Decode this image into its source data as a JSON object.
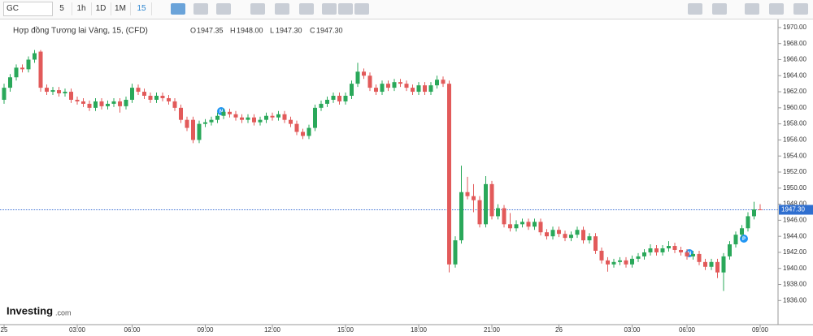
{
  "toolbar": {
    "symbol": "GC",
    "intervals": [
      "5",
      "1h",
      "1D",
      "1M",
      "15"
    ]
  },
  "legend": {
    "instrument": "Hợp đồng Tương lai Vàng, 15, (CFD)",
    "ohlc": [
      {
        "label": "O",
        "value": "1947.35"
      },
      {
        "label": "H",
        "value": "1948.00"
      },
      {
        "label": "L",
        "value": "1947.30"
      },
      {
        "label": "C",
        "value": "1947.30"
      }
    ]
  },
  "events": [
    "N",
    "N",
    "P"
  ],
  "branding": {
    "name": "Investing",
    "suffix": ".com"
  },
  "chart_data": {
    "type": "candlestick",
    "up_color": "#2aa85a",
    "down_color": "#e25a5a",
    "ylim": [
      1933,
      1971
    ],
    "yticks": [
      {
        "value": 1936,
        "label": "1936.00"
      },
      {
        "value": 1938,
        "label": "1938.00"
      },
      {
        "value": 1940,
        "label": "1940.00"
      },
      {
        "value": 1942,
        "label": "1942.00"
      },
      {
        "value": 1944,
        "label": "1944.00"
      },
      {
        "value": 1946,
        "label": "1946.00"
      },
      {
        "value": 1948,
        "label": "1948.00"
      },
      {
        "value": 1950,
        "label": "1950.00"
      },
      {
        "value": 1952,
        "label": "1952.00"
      },
      {
        "value": 1954,
        "label": "1954.00"
      },
      {
        "value": 1956,
        "label": "1956.00"
      },
      {
        "value": 1958,
        "label": "1958.00"
      },
      {
        "value": 1960,
        "label": "1960.00"
      },
      {
        "value": 1962,
        "label": "1962.00"
      },
      {
        "value": 1964,
        "label": "1964.00"
      },
      {
        "value": 1966,
        "label": "1966.00"
      },
      {
        "value": 1968,
        "label": "1968.00"
      },
      {
        "value": 1970,
        "label": "1970.00"
      }
    ],
    "last_price": {
      "value": 1947.3,
      "label": "1947.30"
    },
    "categories": [
      "25",
      null,
      null,
      null,
      null,
      null,
      null,
      null,
      null,
      null,
      null,
      null,
      "03:00",
      null,
      null,
      null,
      null,
      null,
      null,
      null,
      null,
      "06:00",
      null,
      null,
      null,
      null,
      null,
      null,
      null,
      null,
      null,
      null,
      null,
      "09:00",
      null,
      null,
      null,
      null,
      null,
      null,
      null,
      null,
      null,
      null,
      "12:00",
      null,
      null,
      null,
      null,
      null,
      null,
      null,
      null,
      null,
      null,
      null,
      "15:00",
      null,
      null,
      null,
      null,
      null,
      null,
      null,
      null,
      null,
      null,
      null,
      "18:00",
      null,
      null,
      null,
      null,
      null,
      null,
      null,
      null,
      null,
      null,
      null,
      "21:00",
      null,
      null,
      null,
      null,
      null,
      null,
      null,
      null,
      null,
      null,
      "26",
      null,
      null,
      null,
      null,
      null,
      null,
      null,
      null,
      null,
      null,
      null,
      "03:00",
      null,
      null,
      null,
      null,
      null,
      null,
      null,
      null,
      "06:00",
      null,
      null,
      null,
      null,
      null,
      null,
      null,
      null,
      null,
      null,
      null,
      "09:00"
    ],
    "ohlc": [
      [
        1961.0,
        1963.0,
        1960.5,
        1962.5
      ],
      [
        1962.5,
        1964.2,
        1962.0,
        1963.8
      ],
      [
        1963.8,
        1965.4,
        1963.4,
        1965.0
      ],
      [
        1965.0,
        1965.4,
        1964.4,
        1964.8
      ],
      [
        1964.8,
        1966.4,
        1964.4,
        1966.0
      ],
      [
        1966.0,
        1967.2,
        1965.6,
        1966.8
      ],
      [
        1967.0,
        1967.2,
        1962.0,
        1962.5
      ],
      [
        1962.5,
        1962.9,
        1961.6,
        1962.0
      ],
      [
        1962.0,
        1962.6,
        1961.6,
        1962.2
      ],
      [
        1962.2,
        1962.6,
        1961.4,
        1961.8
      ],
      [
        1961.8,
        1962.4,
        1961.4,
        1962.0
      ],
      [
        1962.0,
        1962.4,
        1960.6,
        1961.0
      ],
      [
        1961.0,
        1961.4,
        1960.4,
        1960.8
      ],
      [
        1960.8,
        1961.2,
        1960.1,
        1960.5
      ],
      [
        1960.5,
        1960.9,
        1959.6,
        1960.0
      ],
      [
        1960.0,
        1961.2,
        1959.6,
        1960.8
      ],
      [
        1960.8,
        1961.2,
        1959.8,
        1960.2
      ],
      [
        1960.2,
        1960.9,
        1959.8,
        1960.5
      ],
      [
        1960.5,
        1961.2,
        1960.1,
        1960.8
      ],
      [
        1960.8,
        1961.2,
        1959.4,
        1960.2
      ],
      [
        1960.2,
        1961.4,
        1959.8,
        1961.0
      ],
      [
        1961.0,
        1963.0,
        1960.6,
        1962.5
      ],
      [
        1962.5,
        1962.9,
        1961.6,
        1962.0
      ],
      [
        1962.0,
        1962.4,
        1961.1,
        1961.5
      ],
      [
        1961.5,
        1961.9,
        1960.6,
        1961.0
      ],
      [
        1961.0,
        1961.9,
        1960.6,
        1961.5
      ],
      [
        1961.5,
        1961.9,
        1960.8,
        1961.2
      ],
      [
        1961.2,
        1961.6,
        1960.4,
        1960.8
      ],
      [
        1960.8,
        1961.2,
        1959.6,
        1960.0
      ],
      [
        1960.0,
        1960.4,
        1958.1,
        1958.5
      ],
      [
        1958.5,
        1958.9,
        1957.1,
        1957.5
      ],
      [
        1958.5,
        1958.9,
        1955.6,
        1956.0
      ],
      [
        1956.0,
        1958.4,
        1955.6,
        1958.0
      ],
      [
        1958.0,
        1958.6,
        1957.6,
        1958.2
      ],
      [
        1958.2,
        1958.9,
        1957.8,
        1958.5
      ],
      [
        1958.5,
        1959.4,
        1958.1,
        1959.0
      ],
      [
        1959.0,
        1959.9,
        1958.6,
        1959.5
      ],
      [
        1959.5,
        1959.9,
        1958.8,
        1959.2
      ],
      [
        1959.2,
        1959.6,
        1958.4,
        1958.8
      ],
      [
        1958.8,
        1959.2,
        1958.1,
        1958.5
      ],
      [
        1958.5,
        1959.2,
        1958.1,
        1958.8
      ],
      [
        1958.8,
        1959.2,
        1957.8,
        1958.2
      ],
      [
        1958.2,
        1958.9,
        1957.8,
        1958.5
      ],
      [
        1958.5,
        1959.4,
        1958.1,
        1959.0
      ],
      [
        1959.0,
        1959.4,
        1958.4,
        1958.8
      ],
      [
        1958.8,
        1959.6,
        1958.4,
        1959.2
      ],
      [
        1959.2,
        1959.6,
        1958.1,
        1958.5
      ],
      [
        1958.5,
        1958.9,
        1957.6,
        1958.0
      ],
      [
        1958.0,
        1958.4,
        1956.6,
        1957.0
      ],
      [
        1957.0,
        1957.4,
        1956.1,
        1956.5
      ],
      [
        1956.5,
        1957.9,
        1956.1,
        1957.5
      ],
      [
        1957.5,
        1960.4,
        1957.1,
        1960.0
      ],
      [
        1960.0,
        1960.9,
        1959.6,
        1960.5
      ],
      [
        1960.5,
        1961.4,
        1960.1,
        1961.0
      ],
      [
        1961.0,
        1961.9,
        1960.6,
        1961.5
      ],
      [
        1961.5,
        1961.9,
        1960.4,
        1960.8
      ],
      [
        1960.8,
        1961.9,
        1960.4,
        1961.5
      ],
      [
        1961.5,
        1963.4,
        1961.1,
        1963.0
      ],
      [
        1963.0,
        1965.6,
        1962.6,
        1964.5
      ],
      [
        1964.5,
        1964.9,
        1963.6,
        1964.0
      ],
      [
        1964.0,
        1964.4,
        1962.1,
        1962.5
      ],
      [
        1962.5,
        1962.9,
        1961.6,
        1962.0
      ],
      [
        1962.0,
        1963.4,
        1961.6,
        1963.0
      ],
      [
        1963.0,
        1963.4,
        1962.1,
        1962.5
      ],
      [
        1962.5,
        1963.6,
        1962.1,
        1963.2
      ],
      [
        1963.2,
        1963.6,
        1962.6,
        1963.0
      ],
      [
        1963.0,
        1963.4,
        1962.1,
        1962.5
      ],
      [
        1962.5,
        1962.9,
        1961.6,
        1962.0
      ],
      [
        1962.0,
        1963.2,
        1961.6,
        1962.8
      ],
      [
        1962.8,
        1963.2,
        1961.6,
        1962.0
      ],
      [
        1962.0,
        1963.2,
        1961.6,
        1962.8
      ],
      [
        1962.8,
        1964.0,
        1962.4,
        1963.5
      ],
      [
        1963.5,
        1963.9,
        1962.6,
        1963.0
      ],
      [
        1963.0,
        1963.4,
        1939.5,
        1940.5
      ],
      [
        1940.5,
        1944.0,
        1940.1,
        1943.5
      ],
      [
        1943.5,
        1952.8,
        1943.1,
        1949.5
      ],
      [
        1949.5,
        1951.4,
        1948.6,
        1949.0
      ],
      [
        1949.0,
        1950.5,
        1947.0,
        1948.5
      ],
      [
        1948.5,
        1949.0,
        1945.1,
        1945.5
      ],
      [
        1945.5,
        1951.5,
        1945.1,
        1950.5
      ],
      [
        1950.5,
        1950.9,
        1946.1,
        1946.5
      ],
      [
        1946.5,
        1948.0,
        1946.1,
        1947.5
      ],
      [
        1947.5,
        1947.9,
        1945.1,
        1945.5
      ],
      [
        1945.5,
        1946.9,
        1944.6,
        1945.0
      ],
      [
        1945.0,
        1946.0,
        1944.6,
        1945.5
      ],
      [
        1945.5,
        1946.2,
        1945.1,
        1945.8
      ],
      [
        1945.8,
        1946.2,
        1944.8,
        1945.2
      ],
      [
        1945.2,
        1946.2,
        1944.8,
        1945.8
      ],
      [
        1945.8,
        1946.2,
        1944.1,
        1944.5
      ],
      [
        1944.5,
        1944.9,
        1943.6,
        1944.0
      ],
      [
        1944.0,
        1945.2,
        1943.6,
        1944.8
      ],
      [
        1944.8,
        1945.2,
        1943.9,
        1944.3
      ],
      [
        1944.3,
        1944.7,
        1943.4,
        1943.8
      ],
      [
        1943.8,
        1944.6,
        1943.4,
        1944.2
      ],
      [
        1944.2,
        1945.2,
        1943.8,
        1944.8
      ],
      [
        1944.8,
        1945.2,
        1943.1,
        1943.5
      ],
      [
        1943.5,
        1944.4,
        1943.1,
        1944.0
      ],
      [
        1944.0,
        1944.4,
        1941.8,
        1942.2
      ],
      [
        1942.2,
        1942.6,
        1940.6,
        1941.0
      ],
      [
        1941.0,
        1941.4,
        1939.6,
        1940.5
      ],
      [
        1940.5,
        1941.2,
        1940.1,
        1940.8
      ],
      [
        1940.8,
        1941.4,
        1940.4,
        1941.0
      ],
      [
        1941.0,
        1941.4,
        1940.1,
        1940.5
      ],
      [
        1940.5,
        1941.6,
        1940.1,
        1941.2
      ],
      [
        1941.2,
        1941.9,
        1940.8,
        1941.5
      ],
      [
        1941.5,
        1942.4,
        1941.1,
        1942.0
      ],
      [
        1942.0,
        1943.0,
        1941.6,
        1942.5
      ],
      [
        1942.5,
        1942.9,
        1941.6,
        1942.0
      ],
      [
        1942.0,
        1942.9,
        1941.6,
        1942.5
      ],
      [
        1942.5,
        1943.4,
        1942.1,
        1942.8
      ],
      [
        1942.8,
        1943.2,
        1941.9,
        1942.3
      ],
      [
        1942.3,
        1942.7,
        1941.6,
        1942.0
      ],
      [
        1942.0,
        1942.4,
        1941.1,
        1941.5
      ],
      [
        1941.5,
        1942.2,
        1941.1,
        1941.8
      ],
      [
        1941.8,
        1942.2,
        1940.4,
        1940.8
      ],
      [
        1940.8,
        1941.2,
        1939.8,
        1940.2
      ],
      [
        1940.2,
        1941.2,
        1939.8,
        1940.8
      ],
      [
        1940.8,
        1941.2,
        1938.8,
        1939.5
      ],
      [
        1939.5,
        1941.9,
        1937.2,
        1941.5
      ],
      [
        1941.5,
        1943.4,
        1941.1,
        1943.0
      ],
      [
        1943.0,
        1944.6,
        1942.6,
        1944.2
      ],
      [
        1944.2,
        1945.4,
        1943.8,
        1945.0
      ],
      [
        1945.0,
        1947.0,
        1944.6,
        1946.5
      ],
      [
        1946.5,
        1948.3,
        1946.1,
        1947.35
      ],
      [
        1947.35,
        1948.0,
        1947.3,
        1947.3
      ]
    ]
  }
}
